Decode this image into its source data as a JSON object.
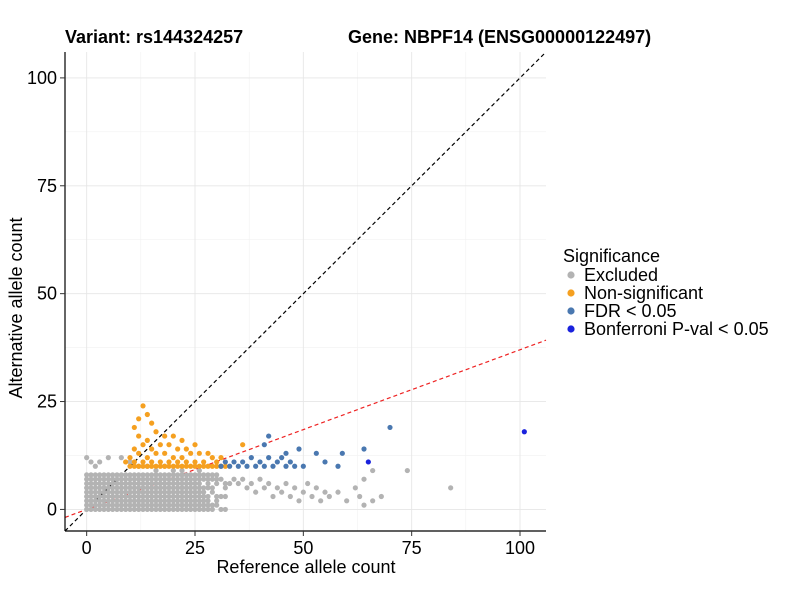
{
  "chart_data": {
    "type": "scatter",
    "title_variant": "Variant: rs144324257",
    "title_gene": "Gene: NBPF14 (ENSG00000122497)",
    "xlabel": "Reference allele count",
    "ylabel": "Alternative allele count",
    "xlim": [
      -5,
      106
    ],
    "ylim": [
      -5,
      106
    ],
    "xticks": [
      0,
      25,
      50,
      75,
      100
    ],
    "yticks": [
      0,
      25,
      50,
      75,
      100
    ],
    "grid": true,
    "reference_lines": [
      {
        "kind": "identity",
        "color": "#000000",
        "dash": true,
        "slope": 1,
        "intercept": 0
      },
      {
        "kind": "ratio",
        "color": "#ee2222",
        "dash": true,
        "slope": 0.37,
        "intercept": 0
      }
    ],
    "legend": {
      "title": "Significance",
      "position": "right",
      "entries": [
        {
          "label": "Excluded",
          "color": "#b3b3b3"
        },
        {
          "label": "Non-significant",
          "color": "#f5a020"
        },
        {
          "label": "FDR < 0.05",
          "color": "#4a78b0"
        },
        {
          "label": "Bonferroni P-val < 0.05",
          "color": "#1a22dd"
        }
      ]
    },
    "series": [
      {
        "name": "Excluded",
        "color": "#b3b3b3",
        "generated_block": {
          "x_range": [
            0,
            33
          ],
          "y_range": [
            0,
            8
          ]
        },
        "points": [
          [
            0,
            12
          ],
          [
            1,
            11
          ],
          [
            2,
            10
          ],
          [
            3,
            11
          ],
          [
            5,
            12
          ],
          [
            8,
            12
          ],
          [
            10,
            11
          ],
          [
            12,
            10
          ],
          [
            14,
            10
          ],
          [
            16,
            9
          ],
          [
            18,
            10
          ],
          [
            20,
            9
          ],
          [
            22,
            9
          ],
          [
            24,
            8
          ],
          [
            26,
            9
          ],
          [
            28,
            8
          ],
          [
            30,
            8
          ],
          [
            34,
            7
          ],
          [
            35,
            6
          ],
          [
            36,
            7
          ],
          [
            37,
            5
          ],
          [
            38,
            6
          ],
          [
            39,
            4
          ],
          [
            40,
            7
          ],
          [
            41,
            5
          ],
          [
            42,
            6
          ],
          [
            43,
            3
          ],
          [
            44,
            5
          ],
          [
            45,
            4
          ],
          [
            46,
            6
          ],
          [
            47,
            3
          ],
          [
            48,
            5
          ],
          [
            49,
            2
          ],
          [
            50,
            4
          ],
          [
            51,
            6
          ],
          [
            52,
            3
          ],
          [
            53,
            5
          ],
          [
            54,
            2
          ],
          [
            55,
            4
          ],
          [
            56,
            3
          ],
          [
            58,
            4
          ],
          [
            60,
            2
          ],
          [
            62,
            5
          ],
          [
            63,
            3
          ],
          [
            64,
            1
          ],
          [
            66,
            2
          ],
          [
            68,
            3
          ],
          [
            74,
            9
          ],
          [
            84,
            5
          ],
          [
            64,
            7
          ],
          [
            66,
            9
          ]
        ]
      },
      {
        "name": "Non-significant",
        "color": "#f5a020",
        "points": [
          [
            13,
            24
          ],
          [
            12,
            21
          ],
          [
            14,
            22
          ],
          [
            11,
            19
          ],
          [
            15,
            20
          ],
          [
            16,
            18
          ],
          [
            12,
            17
          ],
          [
            18,
            17
          ],
          [
            14,
            16
          ],
          [
            20,
            17
          ],
          [
            22,
            16
          ],
          [
            13,
            15
          ],
          [
            17,
            15
          ],
          [
            19,
            15
          ],
          [
            21,
            14
          ],
          [
            11,
            14
          ],
          [
            15,
            14
          ],
          [
            23,
            14
          ],
          [
            25,
            15
          ],
          [
            12,
            13
          ],
          [
            16,
            13
          ],
          [
            18,
            13
          ],
          [
            24,
            13
          ],
          [
            26,
            13
          ],
          [
            28,
            13
          ],
          [
            10,
            12
          ],
          [
            14,
            12
          ],
          [
            20,
            12
          ],
          [
            22,
            12
          ],
          [
            29,
            12
          ],
          [
            31,
            12
          ],
          [
            9,
            11
          ],
          [
            11,
            11
          ],
          [
            13,
            11
          ],
          [
            15,
            11
          ],
          [
            17,
            11
          ],
          [
            19,
            11
          ],
          [
            21,
            11
          ],
          [
            23,
            11
          ],
          [
            25,
            11
          ],
          [
            27,
            11
          ],
          [
            30,
            11
          ],
          [
            10,
            10
          ],
          [
            11,
            10
          ],
          [
            12,
            10
          ],
          [
            13,
            10
          ],
          [
            14,
            10
          ],
          [
            15,
            10
          ],
          [
            16,
            10
          ],
          [
            17,
            10
          ],
          [
            18,
            10
          ],
          [
            19,
            10
          ],
          [
            20,
            10
          ],
          [
            21,
            10
          ],
          [
            22,
            10
          ],
          [
            23,
            10
          ],
          [
            24,
            10
          ],
          [
            25,
            10
          ],
          [
            26,
            10
          ],
          [
            27,
            10
          ],
          [
            28,
            10
          ],
          [
            29,
            10
          ],
          [
            30,
            10
          ],
          [
            31,
            10
          ],
          [
            32,
            10
          ],
          [
            36,
            15
          ]
        ]
      },
      {
        "name": "FDR < 0.05",
        "color": "#4a78b0",
        "points": [
          [
            70,
            19
          ],
          [
            49,
            14
          ],
          [
            53,
            13
          ],
          [
            42,
            17
          ],
          [
            45,
            12
          ],
          [
            44,
            11
          ],
          [
            46,
            13
          ],
          [
            41,
            15
          ],
          [
            40,
            11
          ],
          [
            38,
            12
          ],
          [
            37,
            10
          ],
          [
            39,
            10
          ],
          [
            41,
            10
          ],
          [
            43,
            10
          ],
          [
            35,
            10
          ],
          [
            33,
            10
          ],
          [
            34,
            11
          ],
          [
            36,
            11
          ],
          [
            31,
            10
          ],
          [
            32,
            11
          ],
          [
            47,
            11
          ],
          [
            48,
            10
          ],
          [
            55,
            11
          ],
          [
            58,
            10
          ],
          [
            59,
            13
          ],
          [
            64,
            14
          ],
          [
            50,
            10
          ],
          [
            46,
            10
          ],
          [
            42,
            12
          ]
        ]
      },
      {
        "name": "Bonferroni P-val < 0.05",
        "color": "#1a22dd",
        "points": [
          [
            101,
            18
          ],
          [
            65,
            11
          ]
        ]
      }
    ]
  }
}
